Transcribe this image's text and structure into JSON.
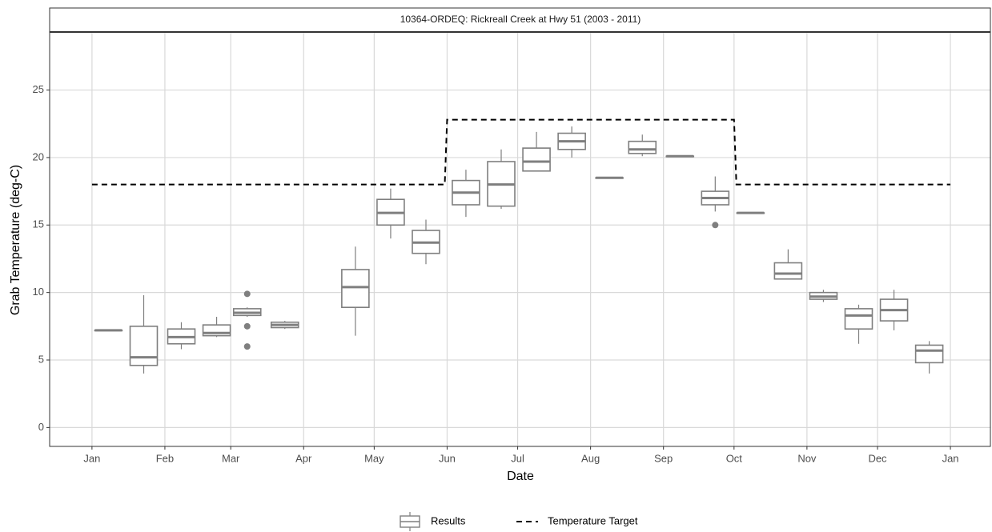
{
  "chart_data": {
    "type": "box",
    "title": "10364-ORDEQ: Rickreall Creek at Hwy 51 (2003 - 2011)",
    "x_label": "Date",
    "y_label": "Grab Temperature (deg-C)",
    "xlim": [
      -18,
      382
    ],
    "xticks": [
      {
        "value": 0,
        "label": "Jan"
      },
      {
        "value": 31,
        "label": "Feb"
      },
      {
        "value": 59,
        "label": "Mar"
      },
      {
        "value": 90,
        "label": "Apr"
      },
      {
        "value": 120,
        "label": "May"
      },
      {
        "value": 151,
        "label": "Jun"
      },
      {
        "value": 181,
        "label": "Jul"
      },
      {
        "value": 212,
        "label": "Aug"
      },
      {
        "value": 243,
        "label": "Sep"
      },
      {
        "value": 273,
        "label": "Oct"
      },
      {
        "value": 304,
        "label": "Nov"
      },
      {
        "value": 334,
        "label": "Dec"
      },
      {
        "value": 365,
        "label": "Jan"
      }
    ],
    "ylim": [
      -1.4,
      29.3
    ],
    "yticks": [
      0,
      5,
      10,
      15,
      20,
      25
    ],
    "grid": true,
    "legend": "bottom",
    "series": [
      {
        "name": "Results",
        "type": "box",
        "color": "#7f7f7f",
        "x": [
          7,
          22,
          38,
          53,
          66,
          82,
          112,
          127,
          142,
          159,
          174,
          189,
          204,
          220,
          234,
          250,
          265,
          280,
          296,
          311,
          326,
          341,
          356
        ],
        "low": [
          7.2,
          4.0,
          5.8,
          6.7,
          8.2,
          7.3,
          6.8,
          14.0,
          12.1,
          15.6,
          16.2,
          19.0,
          20.0,
          18.5,
          20.1,
          20.1,
          16.0,
          15.9,
          11.0,
          9.3,
          6.2,
          7.2,
          4.0
        ],
        "q1": [
          7.2,
          4.6,
          6.2,
          6.8,
          8.3,
          7.4,
          8.9,
          15.0,
          12.9,
          16.5,
          16.4,
          19.0,
          20.6,
          18.5,
          20.3,
          20.1,
          16.5,
          15.9,
          11.0,
          9.5,
          7.3,
          7.9,
          4.8
        ],
        "median": [
          7.2,
          5.2,
          6.7,
          7.0,
          8.5,
          7.6,
          10.4,
          15.9,
          13.7,
          17.4,
          18.0,
          19.7,
          21.2,
          18.5,
          20.6,
          20.1,
          17.0,
          15.9,
          11.4,
          9.7,
          8.3,
          8.7,
          5.7
        ],
        "q3": [
          7.2,
          7.5,
          7.3,
          7.6,
          8.8,
          7.8,
          11.7,
          16.9,
          14.6,
          18.3,
          19.7,
          20.7,
          21.8,
          18.5,
          21.2,
          20.1,
          17.5,
          15.9,
          12.2,
          10.0,
          8.8,
          9.5,
          6.1
        ],
        "high": [
          7.2,
          9.8,
          7.8,
          8.2,
          8.9,
          7.9,
          13.4,
          17.7,
          15.4,
          19.1,
          20.6,
          21.9,
          22.3,
          18.5,
          21.7,
          20.1,
          18.6,
          15.9,
          13.2,
          10.2,
          9.1,
          10.2,
          6.4
        ],
        "outlier_x": [
          66,
          66,
          66,
          265
        ],
        "outlier_values": [
          9.9,
          7.5,
          6.0,
          15.0
        ]
      },
      {
        "name": "Temperature Target",
        "type": "line",
        "color": "#000000",
        "dashed": true,
        "x": [
          0,
          150,
          151,
          273,
          274,
          365
        ],
        "values": [
          18,
          18,
          22.8,
          22.8,
          18,
          18
        ]
      }
    ]
  }
}
